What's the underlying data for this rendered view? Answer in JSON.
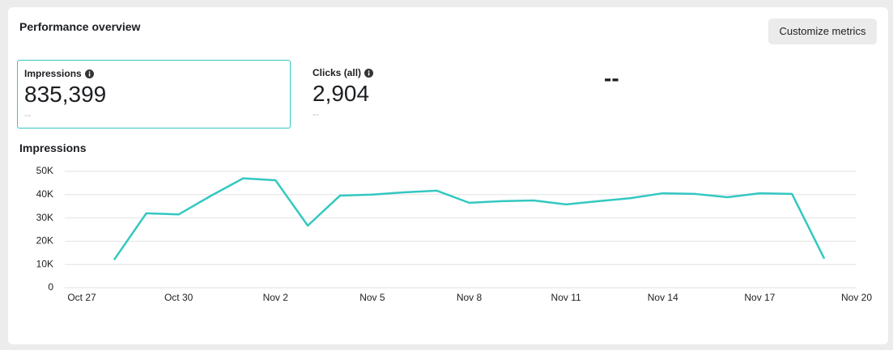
{
  "header": {
    "title": "Performance overview",
    "button": "Customize metrics"
  },
  "metrics": [
    {
      "label": "Impressions",
      "value": "835,399",
      "change": "--"
    },
    {
      "label": "Clicks (all)",
      "value": "2,904",
      "change": "--"
    },
    {
      "value": "--"
    }
  ],
  "chart_data": {
    "type": "line",
    "title": "Impressions",
    "color": "#33c8c1",
    "grid": true,
    "categories": [
      "Oct 27",
      null,
      null,
      "Oct 30",
      null,
      null,
      "Nov 2",
      null,
      null,
      "Nov 5",
      null,
      null,
      "Nov 8",
      null,
      null,
      "Nov 11",
      null,
      null,
      "Nov 14",
      null,
      null,
      "Nov 17",
      null,
      null,
      "Nov 20"
    ],
    "values": [
      null,
      12000,
      32000,
      31500,
      39500,
      47000,
      46200,
      26700,
      39600,
      40000,
      41000,
      41700,
      36500,
      37200,
      37500,
      35800,
      37200,
      38500,
      40600,
      40300,
      38900,
      40600,
      40300,
      12500,
      null
    ],
    "ylim": [
      0,
      50000
    ],
    "yticks": [
      0,
      {
        "value": 10000,
        "label": "10K"
      },
      {
        "value": 20000,
        "label": "20K"
      },
      {
        "value": 30000,
        "label": "30K"
      },
      {
        "value": 40000,
        "label": "40K"
      },
      {
        "value": 50000,
        "label": "50K"
      }
    ]
  }
}
